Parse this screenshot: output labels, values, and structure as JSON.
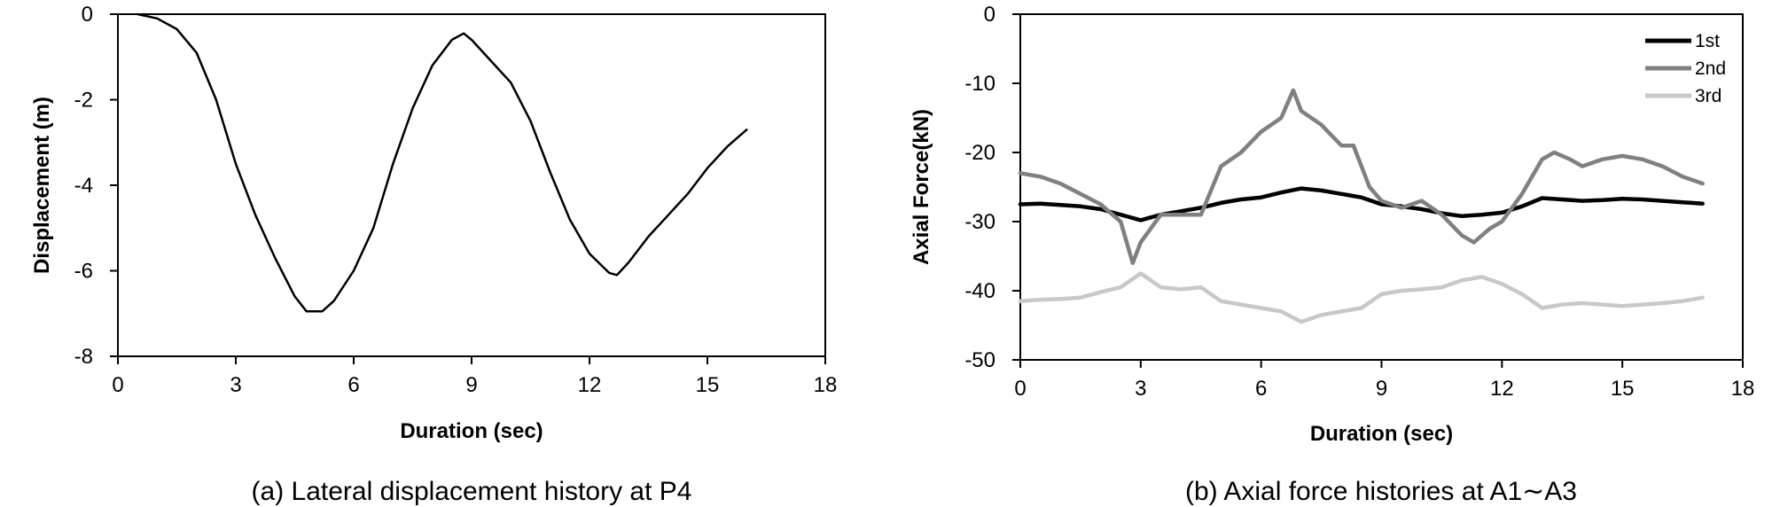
{
  "captions": {
    "a": "(a) Lateral displacement history at P4",
    "b": "(b) Axial force histories at A1∼A3"
  },
  "chart_data": [
    {
      "type": "line",
      "xlabel": "Duration (sec)",
      "ylabel": "Displacement (m)",
      "xlim": [
        0,
        18
      ],
      "ylim": [
        -8,
        0
      ],
      "xticks": [
        "0",
        "3",
        "6",
        "9",
        "12",
        "15",
        "18"
      ],
      "yticks": [
        "0",
        "-2",
        "-4",
        "-6",
        "-8"
      ],
      "grid": false,
      "series": [
        {
          "color": "#000000",
          "x": [
            0.5,
            1.0,
            1.5,
            2.0,
            2.5,
            3.0,
            3.5,
            4.0,
            4.5,
            4.8,
            5.2,
            5.5,
            6.0,
            6.5,
            7.0,
            7.5,
            8.0,
            8.5,
            8.8,
            9.0,
            9.5,
            10.0,
            10.5,
            11.0,
            11.5,
            12.0,
            12.5,
            12.7,
            13.0,
            13.5,
            14.0,
            14.5,
            15.0,
            15.5,
            16.0
          ],
          "y": [
            0,
            -0.1,
            -0.35,
            -0.9,
            -2.0,
            -3.5,
            -4.7,
            -5.7,
            -6.6,
            -6.95,
            -6.95,
            -6.7,
            -6.0,
            -5.0,
            -3.5,
            -2.2,
            -1.2,
            -0.6,
            -0.45,
            -0.6,
            -1.1,
            -1.6,
            -2.5,
            -3.7,
            -4.8,
            -5.6,
            -6.05,
            -6.1,
            -5.8,
            -5.2,
            -4.7,
            -4.2,
            -3.6,
            -3.1,
            -2.7
          ]
        }
      ]
    },
    {
      "type": "line",
      "xlabel": "Duration (sec)",
      "ylabel": "Axial Force(kN)",
      "xlim": [
        0,
        18
      ],
      "ylim": [
        -50,
        0
      ],
      "xticks": [
        "0",
        "3",
        "6",
        "9",
        "12",
        "15",
        "18"
      ],
      "yticks": [
        "0",
        "-10",
        "-20",
        "-30",
        "-40",
        "-50"
      ],
      "grid": false,
      "legend": "top-right",
      "series": [
        {
          "name": "1st",
          "color": "#000000",
          "x": [
            0,
            0.5,
            1,
            1.5,
            2,
            2.5,
            3,
            3.5,
            4,
            4.5,
            5,
            5.5,
            6,
            6.5,
            7,
            7.5,
            8,
            8.5,
            9,
            9.5,
            10,
            10.5,
            11,
            11.5,
            12,
            12.5,
            13,
            13.5,
            14,
            14.5,
            15,
            15.5,
            16,
            16.5,
            17
          ],
          "y": [
            -27.5,
            -27.4,
            -27.6,
            -27.8,
            -28.2,
            -29.0,
            -29.8,
            -29.0,
            -28.5,
            -28.0,
            -27.3,
            -26.8,
            -26.5,
            -25.8,
            -25.2,
            -25.5,
            -26.0,
            -26.5,
            -27.5,
            -27.8,
            -28.2,
            -28.8,
            -29.2,
            -29.0,
            -28.7,
            -27.8,
            -26.6,
            -26.8,
            -27.0,
            -26.9,
            -26.7,
            -26.8,
            -27.0,
            -27.2,
            -27.4
          ]
        },
        {
          "name": "2nd",
          "color": "#808080",
          "x": [
            0,
            0.5,
            1,
            1.5,
            2,
            2.5,
            2.8,
            3,
            3.5,
            4,
            4.5,
            5,
            5.5,
            6,
            6.5,
            6.8,
            7,
            7.5,
            8,
            8.3,
            8.7,
            9,
            9.5,
            10,
            10.5,
            11,
            11.3,
            11.7,
            12,
            12.5,
            13,
            13.3,
            13.7,
            14,
            14.5,
            15,
            15.5,
            16,
            16.5,
            17
          ],
          "y": [
            -23,
            -23.5,
            -24.5,
            -26,
            -27.5,
            -30,
            -36,
            -33,
            -29,
            -29,
            -29,
            -22,
            -20,
            -17,
            -15,
            -11,
            -14,
            -16,
            -19,
            -19,
            -25,
            -27,
            -28,
            -27,
            -29,
            -32,
            -33,
            -31,
            -30,
            -26,
            -21,
            -20,
            -21,
            -22,
            -21,
            -20.5,
            -21,
            -22,
            -23.5,
            -24.5
          ]
        },
        {
          "name": "3rd",
          "color": "#c8c8c8",
          "x": [
            0,
            0.5,
            1,
            1.5,
            2,
            2.5,
            3,
            3.5,
            4,
            4.5,
            5,
            5.5,
            6,
            6.5,
            7,
            7.5,
            8,
            8.5,
            9,
            9.5,
            10,
            10.5,
            11,
            11.5,
            12,
            12.5,
            13,
            13.5,
            14,
            14.5,
            15,
            15.5,
            16,
            16.5,
            17
          ],
          "y": [
            -41.5,
            -41.3,
            -41.2,
            -41.0,
            -40.2,
            -39.5,
            -37.5,
            -39.5,
            -39.8,
            -39.5,
            -41.5,
            -42.0,
            -42.5,
            -43.0,
            -44.5,
            -43.5,
            -43.0,
            -42.5,
            -40.5,
            -40.0,
            -39.8,
            -39.5,
            -38.5,
            -38.0,
            -39.0,
            -40.5,
            -42.5,
            -42.0,
            -41.8,
            -42.0,
            -42.2,
            -42.0,
            -41.8,
            -41.5,
            -41.0
          ]
        }
      ]
    }
  ]
}
